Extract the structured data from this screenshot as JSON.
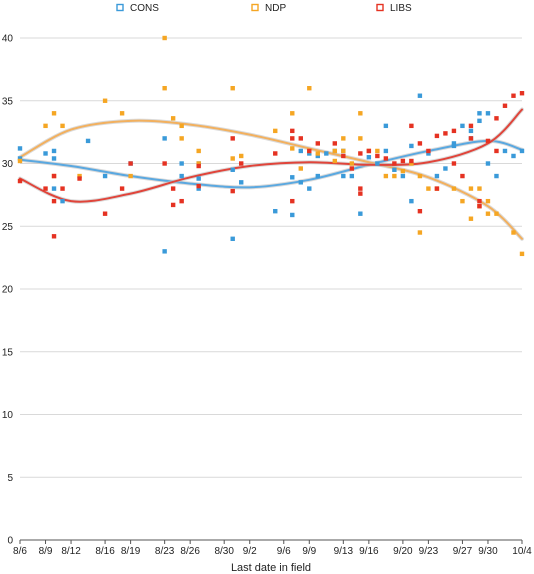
{
  "chart_data": {
    "type": "scatter",
    "title": "",
    "xlabel": "Last date in field",
    "ylabel": "",
    "x_ticks": [
      "8/6",
      "8/9",
      "8/12",
      "8/16",
      "8/19",
      "8/23",
      "8/26",
      "8/30",
      "9/2",
      "9/6",
      "9/9",
      "9/13",
      "9/16",
      "9/20",
      "9/23",
      "9/27",
      "9/30",
      "10/4"
    ],
    "ylim": [
      0,
      40
    ],
    "y_ticks": [
      0,
      5,
      10,
      15,
      20,
      25,
      30,
      35,
      40
    ],
    "grid": "horizontal",
    "legend_position": "top",
    "series": [
      {
        "name": "CONS",
        "color": "#3a9ad9",
        "trend_color": "#5aa8e0",
        "points": [
          [
            "8/6",
            31.2
          ],
          [
            "8/6",
            30.4
          ],
          [
            "8/9",
            30.8
          ],
          [
            "8/10",
            31.0
          ],
          [
            "8/10",
            30.4
          ],
          [
            "8/10",
            28.0
          ],
          [
            "8/11",
            27.0
          ],
          [
            "8/14",
            31.8
          ],
          [
            "8/16",
            29.0
          ],
          [
            "8/19",
            30.0
          ],
          [
            "8/23",
            23.0
          ],
          [
            "8/23",
            32.0
          ],
          [
            "8/25",
            29.0
          ],
          [
            "8/25",
            30.0
          ],
          [
            "8/27",
            30.0
          ],
          [
            "8/27",
            28.8
          ],
          [
            "8/27",
            28.0
          ],
          [
            "8/31",
            24.0
          ],
          [
            "8/31",
            29.5
          ],
          [
            "9/1",
            28.5
          ],
          [
            "9/5",
            26.2
          ],
          [
            "9/7",
            25.9
          ],
          [
            "9/7",
            28.9
          ],
          [
            "9/8",
            28.5
          ],
          [
            "9/9",
            28.0
          ],
          [
            "9/9",
            30.8
          ],
          [
            "9/10",
            29.0
          ],
          [
            "9/10",
            30.6
          ],
          [
            "9/11",
            30.8
          ],
          [
            "9/12",
            31.0
          ],
          [
            "9/13",
            29.0
          ],
          [
            "9/13",
            31.0
          ],
          [
            "9/14",
            29.0
          ],
          [
            "9/15",
            26.0
          ],
          [
            "9/16",
            30.5
          ],
          [
            "9/17",
            30.0
          ],
          [
            "9/18",
            31.0
          ],
          [
            "9/18",
            33.0
          ],
          [
            "9/19",
            29.5
          ],
          [
            "9/20",
            29.0
          ],
          [
            "9/21",
            27.0
          ],
          [
            "9/21",
            31.4
          ],
          [
            "9/22",
            35.4
          ],
          [
            "9/23",
            30.8
          ],
          [
            "9/24",
            29.0
          ],
          [
            "9/25",
            29.6
          ],
          [
            "9/26",
            31.6
          ],
          [
            "9/27",
            33.0
          ],
          [
            "9/28",
            32.0
          ],
          [
            "9/28",
            32.6
          ],
          [
            "9/29",
            33.4
          ],
          [
            "9/29",
            34.0
          ],
          [
            "9/30",
            34.0
          ],
          [
            "9/30",
            30.0
          ],
          [
            "10/1",
            29.0
          ],
          [
            "10/2",
            31.0
          ],
          [
            "10/3",
            30.6
          ],
          [
            "10/4",
            31.0
          ],
          [
            "9/26",
            31.4
          ],
          [
            "9/8",
            31.0
          ]
        ],
        "trend": [
          [
            "8/6",
            30.3
          ],
          [
            "8/12",
            29.8
          ],
          [
            "8/19",
            29.0
          ],
          [
            "8/26",
            28.4
          ],
          [
            "9/2",
            28.1
          ],
          [
            "9/9",
            28.7
          ],
          [
            "9/16",
            29.9
          ],
          [
            "9/23",
            31.0
          ],
          [
            "9/30",
            31.8
          ],
          [
            "10/4",
            31.1
          ]
        ]
      },
      {
        "name": "NDP",
        "color": "#f5a623",
        "trend_color": "#f2b05e",
        "points": [
          [
            "8/6",
            30.2
          ],
          [
            "8/9",
            33.0
          ],
          [
            "8/10",
            34.0
          ],
          [
            "8/10",
            29.0
          ],
          [
            "8/11",
            33.0
          ],
          [
            "8/13",
            29.0
          ],
          [
            "8/16",
            35.0
          ],
          [
            "8/18",
            34.0
          ],
          [
            "8/19",
            29.0
          ],
          [
            "8/23",
            40.0
          ],
          [
            "8/23",
            36.0
          ],
          [
            "8/24",
            33.6
          ],
          [
            "8/25",
            32.0
          ],
          [
            "8/25",
            33.0
          ],
          [
            "8/27",
            31.0
          ],
          [
            "8/27",
            30.0
          ],
          [
            "8/31",
            36.0
          ],
          [
            "8/31",
            30.4
          ],
          [
            "9/1",
            30.6
          ],
          [
            "9/5",
            32.6
          ],
          [
            "9/7",
            34.0
          ],
          [
            "9/7",
            31.2
          ],
          [
            "9/8",
            29.6
          ],
          [
            "9/9",
            36.0
          ],
          [
            "9/9",
            31.0
          ],
          [
            "9/10",
            30.8
          ],
          [
            "9/12",
            31.0
          ],
          [
            "9/13",
            32.0
          ],
          [
            "9/13",
            31.0
          ],
          [
            "9/14",
            30.0
          ],
          [
            "9/15",
            34.0
          ],
          [
            "9/15",
            32.0
          ],
          [
            "9/16",
            31.0
          ],
          [
            "9/17",
            31.0
          ],
          [
            "9/18",
            29.0
          ],
          [
            "9/19",
            29.0
          ],
          [
            "9/20",
            29.4
          ],
          [
            "9/21",
            30.0
          ],
          [
            "9/22",
            24.5
          ],
          [
            "9/22",
            29.0
          ],
          [
            "9/23",
            28.0
          ],
          [
            "9/24",
            28.0
          ],
          [
            "9/26",
            28.0
          ],
          [
            "9/27",
            27.0
          ],
          [
            "9/28",
            28.0
          ],
          [
            "9/28",
            25.6
          ],
          [
            "9/29",
            26.6
          ],
          [
            "9/29",
            28.0
          ],
          [
            "9/30",
            26.0
          ],
          [
            "9/30",
            27.0
          ],
          [
            "10/1",
            26.0
          ],
          [
            "10/3",
            24.5
          ],
          [
            "10/4",
            22.8
          ],
          [
            "9/12",
            30.2
          ]
        ],
        "trend": [
          [
            "8/6",
            30.5
          ],
          [
            "8/12",
            32.7
          ],
          [
            "8/19",
            33.4
          ],
          [
            "8/26",
            33.1
          ],
          [
            "9/2",
            32.3
          ],
          [
            "9/9",
            31.2
          ],
          [
            "9/16",
            30.1
          ],
          [
            "9/23",
            28.9
          ],
          [
            "9/30",
            26.6
          ],
          [
            "10/4",
            24.0
          ]
        ]
      },
      {
        "name": "LIBS",
        "color": "#e53222",
        "trend_color": "#e0443a",
        "points": [
          [
            "8/6",
            28.6
          ],
          [
            "8/9",
            28.0
          ],
          [
            "8/10",
            29.0
          ],
          [
            "8/10",
            27.0
          ],
          [
            "8/10",
            24.2
          ],
          [
            "8/11",
            28.0
          ],
          [
            "8/13",
            28.8
          ],
          [
            "8/16",
            26.0
          ],
          [
            "8/18",
            28.0
          ],
          [
            "8/19",
            30.0
          ],
          [
            "8/23",
            30.0
          ],
          [
            "8/24",
            26.7
          ],
          [
            "8/24",
            28.0
          ],
          [
            "8/25",
            27.0
          ],
          [
            "8/27",
            29.8
          ],
          [
            "8/27",
            28.2
          ],
          [
            "8/31",
            32.0
          ],
          [
            "8/31",
            27.8
          ],
          [
            "9/1",
            30.0
          ],
          [
            "9/5",
            30.8
          ],
          [
            "9/7",
            32.6
          ],
          [
            "9/7",
            32.0
          ],
          [
            "9/7",
            27.0
          ],
          [
            "9/8",
            32.0
          ],
          [
            "9/9",
            31.0
          ],
          [
            "9/10",
            31.6
          ],
          [
            "9/12",
            31.6
          ],
          [
            "9/13",
            30.6
          ],
          [
            "9/14",
            29.6
          ],
          [
            "9/15",
            30.8
          ],
          [
            "9/15",
            28.0
          ],
          [
            "9/15",
            27.6
          ],
          [
            "9/16",
            31.0
          ],
          [
            "9/17",
            30.6
          ],
          [
            "9/18",
            30.4
          ],
          [
            "9/19",
            30.0
          ],
          [
            "9/20",
            30.2
          ],
          [
            "9/21",
            33.0
          ],
          [
            "9/21",
            30.2
          ],
          [
            "9/22",
            26.2
          ],
          [
            "9/22",
            31.6
          ],
          [
            "9/23",
            31.0
          ],
          [
            "9/24",
            32.2
          ],
          [
            "9/24",
            28.0
          ],
          [
            "9/25",
            32.4
          ],
          [
            "9/26",
            32.6
          ],
          [
            "9/27",
            29.0
          ],
          [
            "9/28",
            33.0
          ],
          [
            "9/28",
            32.0
          ],
          [
            "9/29",
            27.0
          ],
          [
            "9/29",
            26.6
          ],
          [
            "9/30",
            31.8
          ],
          [
            "10/1",
            33.6
          ],
          [
            "10/1",
            31.0
          ],
          [
            "10/2",
            34.6
          ],
          [
            "10/3",
            35.4
          ],
          [
            "10/4",
            35.6
          ],
          [
            "9/26",
            30.0
          ]
        ],
        "trend": [
          [
            "8/6",
            28.8
          ],
          [
            "8/12",
            27.0
          ],
          [
            "8/19",
            27.6
          ],
          [
            "8/26",
            28.9
          ],
          [
            "9/2",
            29.8
          ],
          [
            "9/9",
            30.1
          ],
          [
            "9/16",
            29.9
          ],
          [
            "9/23",
            30.1
          ],
          [
            "9/30",
            31.6
          ],
          [
            "10/4",
            34.3
          ]
        ]
      }
    ]
  }
}
